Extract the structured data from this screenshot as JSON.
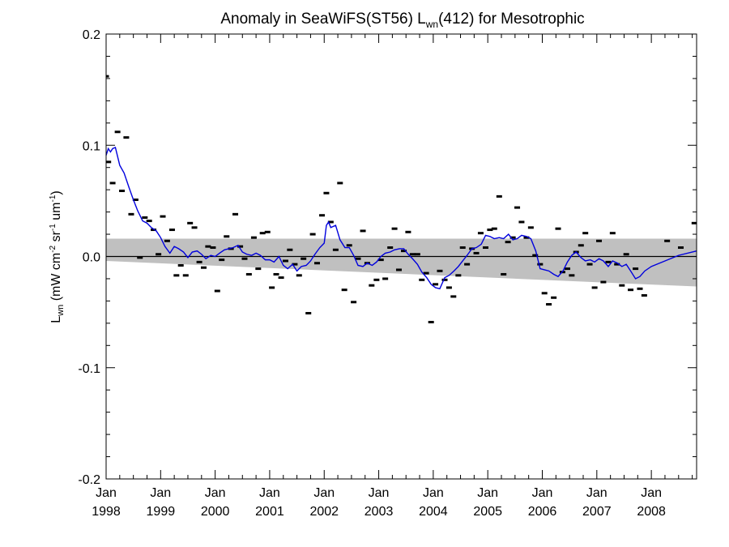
{
  "chart_data": {
    "type": "scatter",
    "title": {
      "prefix": "Anomaly in SeaWiFS(ST56) L",
      "sub": "wn",
      "suffix": "(412) for Mesotrophic"
    },
    "ylabel": {
      "prefix": "L",
      "sub": "wn",
      "units_a": " (mW cm",
      "sup_a": "-2",
      "units_b": " sr",
      "sup_b": "-1",
      "units_c": " um",
      "sup_c": "-1",
      "units_d": ")"
    },
    "xlim": [
      1998.0,
      2008.83
    ],
    "ylim": [
      -0.2,
      0.2
    ],
    "x_ticks": [
      {
        "value": 1998,
        "month": "Jan",
        "year": "1998"
      },
      {
        "value": 1999,
        "month": "Jan",
        "year": "1999"
      },
      {
        "value": 2000,
        "month": "Jan",
        "year": "2000"
      },
      {
        "value": 2001,
        "month": "Jan",
        "year": "2001"
      },
      {
        "value": 2002,
        "month": "Jan",
        "year": "2002"
      },
      {
        "value": 2003,
        "month": "Jan",
        "year": "2003"
      },
      {
        "value": 2004,
        "month": "Jan",
        "year": "2004"
      },
      {
        "value": 2005,
        "month": "Jan",
        "year": "2005"
      },
      {
        "value": 2006,
        "month": "Jan",
        "year": "2006"
      },
      {
        "value": 2007,
        "month": "Jan",
        "year": "2007"
      },
      {
        "value": 2008,
        "month": "Jan",
        "year": "2008"
      }
    ],
    "y_ticks": [
      {
        "value": 0.2,
        "label": "0.2"
      },
      {
        "value": 0.1,
        "label": "0.1"
      },
      {
        "value": 0.0,
        "label": "0.0"
      },
      {
        "value": -0.1,
        "label": "-0.1"
      },
      {
        "value": -0.2,
        "label": "-0.2"
      }
    ],
    "zero_line": 0.0,
    "colors": {
      "running_mean": "#0000dd",
      "band": "#c0c0c0",
      "points": "#000000"
    },
    "points": [
      [
        1997.96,
        0.162
      ],
      [
        1998.04,
        0.085
      ],
      [
        1998.12,
        0.066
      ],
      [
        1998.21,
        0.112
      ],
      [
        1998.29,
        0.059
      ],
      [
        1998.37,
        0.107
      ],
      [
        1998.46,
        0.038
      ],
      [
        1998.54,
        0.051
      ],
      [
        1998.62,
        -0.001
      ],
      [
        1998.71,
        0.035
      ],
      [
        1998.79,
        0.032
      ],
      [
        1998.87,
        0.024
      ],
      [
        1998.96,
        0.002
      ],
      [
        1999.04,
        0.036
      ],
      [
        1999.12,
        0.014
      ],
      [
        1999.21,
        0.024
      ],
      [
        1999.29,
        -0.017
      ],
      [
        1999.37,
        -0.008
      ],
      [
        1999.46,
        -0.017
      ],
      [
        1999.54,
        0.03
      ],
      [
        1999.62,
        0.026
      ],
      [
        1999.71,
        -0.005
      ],
      [
        1999.79,
        -0.01
      ],
      [
        1999.87,
        0.009
      ],
      [
        1999.96,
        0.008
      ],
      [
        2000.04,
        -0.031
      ],
      [
        2000.12,
        -0.003
      ],
      [
        2000.21,
        0.018
      ],
      [
        2000.29,
        0.007
      ],
      [
        2000.37,
        0.038
      ],
      [
        2000.46,
        0.009
      ],
      [
        2000.54,
        -0.002
      ],
      [
        2000.62,
        -0.016
      ],
      [
        2000.71,
        0.017
      ],
      [
        2000.79,
        -0.011
      ],
      [
        2000.87,
        0.021
      ],
      [
        2000.96,
        0.022
      ],
      [
        2001.04,
        -0.028
      ],
      [
        2001.12,
        -0.016
      ],
      [
        2001.21,
        -0.019
      ],
      [
        2001.29,
        -0.004
      ],
      [
        2001.37,
        0.006
      ],
      [
        2001.46,
        -0.007
      ],
      [
        2001.54,
        -0.017
      ],
      [
        2001.62,
        -0.002
      ],
      [
        2001.71,
        -0.051
      ],
      [
        2001.79,
        0.02
      ],
      [
        2001.87,
        -0.006
      ],
      [
        2001.96,
        0.037
      ],
      [
        2002.04,
        0.057
      ],
      [
        2002.12,
        0.031
      ],
      [
        2002.21,
        0.006
      ],
      [
        2002.29,
        0.066
      ],
      [
        2002.37,
        -0.03
      ],
      [
        2002.46,
        0.01
      ],
      [
        2002.54,
        -0.041
      ],
      [
        2002.62,
        -0.002
      ],
      [
        2002.71,
        0.023
      ],
      [
        2002.79,
        -0.006
      ],
      [
        2002.87,
        -0.026
      ],
      [
        2002.96,
        -0.021
      ],
      [
        2003.04,
        -0.003
      ],
      [
        2003.12,
        -0.02
      ],
      [
        2003.21,
        0.008
      ],
      [
        2003.29,
        0.025
      ],
      [
        2003.37,
        -0.012
      ],
      [
        2003.46,
        0.005
      ],
      [
        2003.54,
        0.022
      ],
      [
        2003.62,
        0.002
      ],
      [
        2003.71,
        0.002
      ],
      [
        2003.79,
        -0.021
      ],
      [
        2003.87,
        -0.015
      ],
      [
        2003.96,
        -0.059
      ],
      [
        2004.04,
        -0.025
      ],
      [
        2004.12,
        -0.013
      ],
      [
        2004.21,
        -0.021
      ],
      [
        2004.29,
        -0.028
      ],
      [
        2004.37,
        -0.036
      ],
      [
        2004.46,
        -0.017
      ],
      [
        2004.54,
        0.008
      ],
      [
        2004.62,
        -0.007
      ],
      [
        2004.71,
        0.007
      ],
      [
        2004.79,
        0.003
      ],
      [
        2004.87,
        0.021
      ],
      [
        2004.96,
        0.008
      ],
      [
        2005.04,
        0.024
      ],
      [
        2005.12,
        0.025
      ],
      [
        2005.21,
        0.054
      ],
      [
        2005.29,
        -0.016
      ],
      [
        2005.37,
        0.013
      ],
      [
        2005.46,
        0.017
      ],
      [
        2005.54,
        0.044
      ],
      [
        2005.62,
        0.031
      ],
      [
        2005.71,
        0.017
      ],
      [
        2005.79,
        0.026
      ],
      [
        2005.87,
        0.001
      ],
      [
        2005.96,
        -0.007
      ],
      [
        2006.04,
        -0.033
      ],
      [
        2006.12,
        -0.043
      ],
      [
        2006.21,
        -0.037
      ],
      [
        2006.29,
        0.025
      ],
      [
        2006.37,
        -0.014
      ],
      [
        2006.46,
        -0.011
      ],
      [
        2006.54,
        -0.017
      ],
      [
        2006.62,
        0.004
      ],
      [
        2006.71,
        0.01
      ],
      [
        2006.79,
        0.021
      ],
      [
        2006.87,
        -0.007
      ],
      [
        2006.96,
        -0.028
      ],
      [
        2007.04,
        0.014
      ],
      [
        2007.12,
        -0.023
      ],
      [
        2007.21,
        -0.005
      ],
      [
        2007.29,
        0.021
      ],
      [
        2007.37,
        -0.007
      ],
      [
        2007.46,
        -0.026
      ],
      [
        2007.54,
        0.002
      ],
      [
        2007.62,
        -0.03
      ],
      [
        2007.71,
        -0.011
      ],
      [
        2007.79,
        -0.029
      ],
      [
        2007.87,
        -0.035
      ],
      [
        2008.29,
        0.014
      ],
      [
        2008.54,
        0.008
      ],
      [
        2008.79,
        0.03
      ]
    ],
    "running_mean": [
      [
        1998.0,
        0.091
      ],
      [
        1998.04,
        0.097
      ],
      [
        1998.08,
        0.094
      ],
      [
        1998.12,
        0.097
      ],
      [
        1998.17,
        0.098
      ],
      [
        1998.25,
        0.082
      ],
      [
        1998.33,
        0.075
      ],
      [
        1998.42,
        0.062
      ],
      [
        1998.5,
        0.051
      ],
      [
        1998.58,
        0.041
      ],
      [
        1998.67,
        0.032
      ],
      [
        1998.75,
        0.03
      ],
      [
        1998.83,
        0.026
      ],
      [
        1998.92,
        0.023
      ],
      [
        1999.0,
        0.017
      ],
      [
        1999.08,
        0.009
      ],
      [
        1999.17,
        0.003
      ],
      [
        1999.25,
        0.009
      ],
      [
        1999.33,
        0.007
      ],
      [
        1999.42,
        0.004
      ],
      [
        1999.5,
        -0.001
      ],
      [
        1999.58,
        0.004
      ],
      [
        1999.67,
        0.005
      ],
      [
        1999.75,
        0.002
      ],
      [
        1999.83,
        -0.002
      ],
      [
        1999.92,
        0.001
      ],
      [
        2000.0,
        0.0
      ],
      [
        2000.08,
        0.003
      ],
      [
        2000.17,
        0.006
      ],
      [
        2000.25,
        0.007
      ],
      [
        2000.33,
        0.008
      ],
      [
        2000.42,
        0.01
      ],
      [
        2000.5,
        0.004
      ],
      [
        2000.58,
        0.002
      ],
      [
        2000.67,
        0.001
      ],
      [
        2000.75,
        0.003
      ],
      [
        2000.83,
        0.001
      ],
      [
        2000.92,
        -0.003
      ],
      [
        2001.0,
        -0.003
      ],
      [
        2001.08,
        -0.005
      ],
      [
        2001.17,
        0.0
      ],
      [
        2001.25,
        -0.008
      ],
      [
        2001.33,
        -0.011
      ],
      [
        2001.42,
        -0.007
      ],
      [
        2001.5,
        -0.013
      ],
      [
        2001.58,
        -0.009
      ],
      [
        2001.67,
        -0.008
      ],
      [
        2001.75,
        -0.004
      ],
      [
        2001.83,
        0.002
      ],
      [
        2001.92,
        0.008
      ],
      [
        2002.0,
        0.012
      ],
      [
        2002.04,
        0.028
      ],
      [
        2002.08,
        0.031
      ],
      [
        2002.12,
        0.026
      ],
      [
        2002.21,
        0.028
      ],
      [
        2002.29,
        0.015
      ],
      [
        2002.38,
        0.008
      ],
      [
        2002.46,
        0.008
      ],
      [
        2002.54,
        0.001
      ],
      [
        2002.62,
        -0.008
      ],
      [
        2002.71,
        -0.009
      ],
      [
        2002.79,
        -0.006
      ],
      [
        2002.88,
        -0.008
      ],
      [
        2002.96,
        -0.005
      ],
      [
        2003.04,
        0.0
      ],
      [
        2003.12,
        0.003
      ],
      [
        2003.21,
        0.004
      ],
      [
        2003.29,
        0.006
      ],
      [
        2003.38,
        0.007
      ],
      [
        2003.46,
        0.007
      ],
      [
        2003.54,
        0.002
      ],
      [
        2003.62,
        -0.002
      ],
      [
        2003.71,
        -0.007
      ],
      [
        2003.79,
        -0.014
      ],
      [
        2003.88,
        -0.019
      ],
      [
        2003.96,
        -0.025
      ],
      [
        2004.04,
        -0.028
      ],
      [
        2004.12,
        -0.029
      ],
      [
        2004.21,
        -0.019
      ],
      [
        2004.29,
        -0.017
      ],
      [
        2004.38,
        -0.013
      ],
      [
        2004.46,
        -0.009
      ],
      [
        2004.54,
        -0.004
      ],
      [
        2004.62,
        0.001
      ],
      [
        2004.71,
        0.007
      ],
      [
        2004.79,
        0.008
      ],
      [
        2004.88,
        0.011
      ],
      [
        2004.96,
        0.019
      ],
      [
        2005.04,
        0.018
      ],
      [
        2005.12,
        0.016
      ],
      [
        2005.21,
        0.017
      ],
      [
        2005.29,
        0.016
      ],
      [
        2005.38,
        0.02
      ],
      [
        2005.46,
        0.015
      ],
      [
        2005.54,
        0.016
      ],
      [
        2005.62,
        0.019
      ],
      [
        2005.71,
        0.018
      ],
      [
        2005.79,
        0.016
      ],
      [
        2005.88,
        0.005
      ],
      [
        2005.96,
        -0.011
      ],
      [
        2006.04,
        -0.012
      ],
      [
        2006.12,
        -0.013
      ],
      [
        2006.21,
        -0.016
      ],
      [
        2006.29,
        -0.018
      ],
      [
        2006.38,
        -0.013
      ],
      [
        2006.46,
        -0.005
      ],
      [
        2006.54,
        0.001
      ],
      [
        2006.62,
        0.004
      ],
      [
        2006.71,
        -0.001
      ],
      [
        2006.79,
        -0.004
      ],
      [
        2006.88,
        -0.003
      ],
      [
        2006.96,
        -0.005
      ],
      [
        2007.04,
        -0.002
      ],
      [
        2007.12,
        -0.004
      ],
      [
        2007.21,
        -0.009
      ],
      [
        2007.29,
        -0.004
      ],
      [
        2007.38,
        -0.006
      ],
      [
        2007.46,
        -0.009
      ],
      [
        2007.54,
        -0.007
      ],
      [
        2007.62,
        -0.013
      ],
      [
        2007.71,
        -0.02
      ],
      [
        2007.79,
        -0.018
      ],
      [
        2007.88,
        -0.013
      ],
      [
        2008.0,
        -0.009
      ],
      [
        2008.25,
        -0.004
      ],
      [
        2008.5,
        0.001
      ],
      [
        2008.83,
        0.005
      ]
    ],
    "confidence_band": {
      "x": [
        1998.0,
        2008.83
      ],
      "upper": [
        0.016,
        0.016
      ],
      "lower": [
        -0.004,
        -0.027
      ]
    }
  }
}
